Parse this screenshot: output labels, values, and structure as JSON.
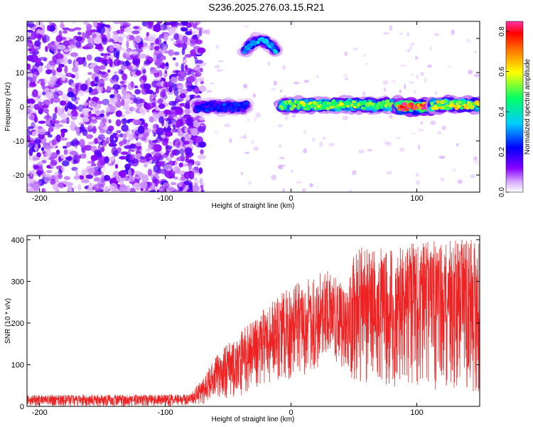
{
  "title": "S236.2025.276.03.15.R21",
  "chart_data": [
    {
      "type": "heatmap",
      "name": "spectrogram",
      "xlabel": "Height of straight line (km)",
      "ylabel": "Frequency (Hz)",
      "xlim": [
        -210,
        150
      ],
      "ylim": [
        -25,
        25
      ],
      "xticks": [
        -200,
        -100,
        0,
        100
      ],
      "yticks": [
        -20,
        -10,
        0,
        10,
        20
      ],
      "colorbar": {
        "label": "Normalized spectral amplitude",
        "range": [
          0.0,
          0.85
        ],
        "ticks": [
          "0.0",
          "0.2",
          "0.4",
          "0.6",
          "0.8"
        ],
        "tick_values": [
          0.0,
          0.2,
          0.4,
          0.6,
          0.8
        ],
        "colormap": [
          "#ffffff",
          "#8800ff",
          "#0000ff",
          "#00ffff",
          "#00ff00",
          "#ffff00",
          "#ff8800",
          "#ff0000",
          "#ff44aa"
        ]
      },
      "noise_region_x": [
        -210,
        -75
      ],
      "features": [
        {
          "x_from": -75,
          "x_to": -35,
          "freq": 0,
          "amplitude": 0.25
        },
        {
          "x_from": -37,
          "x_to": -12,
          "freq": 18,
          "amplitude": 0.35
        },
        {
          "x_from": -8,
          "x_to": 85,
          "freq": 0.5,
          "amplitude": 0.55
        },
        {
          "x_from": 85,
          "x_to": 112,
          "freq": 0,
          "amplitude": 0.85
        },
        {
          "x_from": 112,
          "x_to": 150,
          "freq": 0.5,
          "amplitude": 0.6
        }
      ]
    },
    {
      "type": "line",
      "name": "snr",
      "xlabel": "Height of straight line (km)",
      "ylabel": "SNR (10 * v/v)",
      "xlim": [
        -210,
        150
      ],
      "ylim": [
        0,
        410
      ],
      "xticks": [
        -200,
        -100,
        0,
        100
      ],
      "yticks": [
        0,
        100,
        200,
        300,
        400
      ],
      "color": "#ee2222",
      "envelope": {
        "x": [
          -210,
          -160,
          -110,
          -80,
          -70,
          -60,
          -40,
          -20,
          0,
          15,
          25,
          30,
          45,
          50,
          60,
          80,
          100,
          120,
          150
        ],
        "upper": [
          28,
          28,
          28,
          30,
          70,
          120,
          180,
          240,
          290,
          310,
          330,
          330,
          280,
          380,
          390,
          380,
          395,
          405,
          400
        ],
        "lower": [
          0,
          0,
          0,
          0,
          5,
          10,
          25,
          40,
          60,
          80,
          100,
          120,
          70,
          60,
          50,
          45,
          40,
          35,
          30
        ]
      }
    }
  ]
}
